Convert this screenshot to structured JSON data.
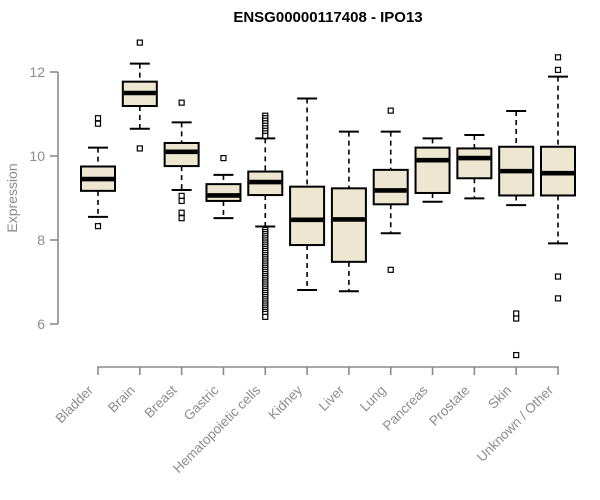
{
  "chart_data": {
    "type": "box",
    "title": "ENSG00000117408 - IPO13",
    "xlabel": "",
    "ylabel": "Expression",
    "ylim": [
      6,
      12
    ],
    "yticks": [
      6,
      8,
      10,
      12
    ],
    "grid": false,
    "legend": "none",
    "x_label_rotation": 45,
    "categories": [
      "Bladder",
      "Brain",
      "Breast",
      "Gastric",
      "Hematopoietic cells",
      "Kidney",
      "Liver",
      "Lung",
      "Pancreas",
      "Prostate",
      "Skin",
      "Unknown / Other"
    ],
    "boxes": [
      {
        "label": "Bladder",
        "whislo": 8.55,
        "q1": 9.17,
        "med": 9.45,
        "q3": 9.75,
        "whishi": 10.2,
        "outliers": [
          10.9,
          10.77,
          8.33
        ]
      },
      {
        "label": "Brain",
        "whislo": 10.65,
        "q1": 11.19,
        "med": 11.5,
        "q3": 11.77,
        "whishi": 12.2,
        "outliers": [
          12.7,
          10.18
        ]
      },
      {
        "label": "Breast",
        "whislo": 9.19,
        "q1": 9.76,
        "med": 10.1,
        "q3": 10.31,
        "whishi": 10.8,
        "outliers": [
          11.27,
          9.05,
          8.93,
          8.65,
          8.52
        ]
      },
      {
        "label": "Gastric",
        "whislo": 8.52,
        "q1": 8.93,
        "med": 9.06,
        "q3": 9.33,
        "whishi": 9.55,
        "outliers": [
          9.95
        ]
      },
      {
        "label": "Hematopoietic cells",
        "whislo": 8.32,
        "q1": 9.07,
        "med": 9.38,
        "q3": 9.63,
        "whishi": 10.42,
        "outliers": [
          10.96,
          10.9,
          10.84,
          10.78,
          10.72,
          10.66,
          10.6,
          10.54,
          10.48,
          8.24,
          8.19,
          8.14,
          8.09,
          8.04,
          7.99,
          7.94,
          7.89,
          7.84,
          7.79,
          7.74,
          7.69,
          7.64,
          7.59,
          7.54,
          7.49,
          7.44,
          7.39,
          7.34,
          7.29,
          7.24,
          7.19,
          7.14,
          7.09,
          7.04,
          6.99,
          6.94,
          6.89,
          6.84,
          6.79,
          6.74,
          6.69,
          6.64,
          6.59,
          6.54,
          6.49,
          6.44,
          6.39,
          6.34,
          6.29,
          6.24,
          6.17
        ]
      },
      {
        "label": "Kidney",
        "whislo": 6.81,
        "q1": 7.88,
        "med": 8.48,
        "q3": 9.27,
        "whishi": 11.37,
        "outliers": []
      },
      {
        "label": "Liver",
        "whislo": 6.78,
        "q1": 7.48,
        "med": 8.49,
        "q3": 9.23,
        "whishi": 10.58,
        "outliers": []
      },
      {
        "label": "Lung",
        "whislo": 8.16,
        "q1": 8.85,
        "med": 9.18,
        "q3": 9.67,
        "whishi": 10.58,
        "outliers": [
          11.08,
          7.29
        ]
      },
      {
        "label": "Pancreas",
        "whislo": 8.91,
        "q1": 9.12,
        "med": 9.9,
        "q3": 10.2,
        "whishi": 10.42,
        "outliers": []
      },
      {
        "label": "Prostate",
        "whislo": 8.99,
        "q1": 9.47,
        "med": 9.95,
        "q3": 10.18,
        "whishi": 10.5,
        "outliers": []
      },
      {
        "label": "Skin",
        "whislo": 8.83,
        "q1": 9.06,
        "med": 9.64,
        "q3": 10.22,
        "whishi": 11.07,
        "outliers": [
          6.25,
          6.13,
          5.26
        ]
      },
      {
        "label": "Unknown / Other",
        "whislo": 7.92,
        "q1": 9.06,
        "med": 9.59,
        "q3": 10.22,
        "whishi": 11.89,
        "outliers": [
          12.35,
          12.05,
          7.13,
          6.61
        ]
      }
    ],
    "colors": {
      "box_fill": "#EDE7D1",
      "box_stroke": "#000000",
      "median": "#000000",
      "axis": "#8C8C8C",
      "label": "#8C8C8C",
      "title": "#000000",
      "background": "#FFFFFF"
    }
  }
}
